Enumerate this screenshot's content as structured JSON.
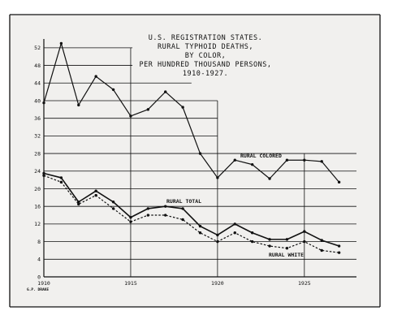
{
  "chart_data": {
    "type": "line",
    "title_lines": [
      "U.S. REGISTRATION STATES.",
      "RURAL TYPHOID DEATHS,",
      "BY COLOR,",
      "PER HUNDRED THOUSAND PERSONS,",
      "1910-1927."
    ],
    "credit": "G.P. DRAKE",
    "x_tick_labels": [
      "1910",
      "1915",
      "1920",
      "1925"
    ],
    "y_tick_labels": [
      "0",
      "4",
      "8",
      "12",
      "16",
      "20",
      "24",
      "28",
      "32",
      "36",
      "40",
      "44",
      "48",
      "52"
    ],
    "xlim": [
      1910,
      1928
    ],
    "ylim": [
      0,
      54
    ],
    "x": [
      1910,
      1911,
      1912,
      1913,
      1914,
      1915,
      1916,
      1917,
      1918,
      1919,
      1920,
      1921,
      1922,
      1923,
      1924,
      1925,
      1926,
      1927
    ],
    "series": [
      {
        "name": "RURAL COLORED",
        "style": "solid",
        "values": [
          39.5,
          53,
          39,
          45.5,
          42.5,
          36.5,
          38,
          42,
          38.5,
          28,
          22.5,
          26.5,
          25.5,
          22.3,
          26.5,
          26.5,
          26.2,
          21.5
        ]
      },
      {
        "name": "RURAL TOTAL",
        "style": "solid",
        "values": [
          23.5,
          22.5,
          17,
          19.5,
          17,
          13.5,
          15.5,
          16,
          15.5,
          11.5,
          9.5,
          12,
          10,
          8.5,
          8.5,
          10.3,
          8.3,
          7
        ]
      },
      {
        "name": "RURAL WHITE",
        "style": "dashed",
        "values": [
          23,
          21.5,
          16.5,
          18.5,
          15.5,
          12.5,
          14,
          14,
          13,
          10,
          8,
          10,
          8,
          7,
          6.5,
          8,
          6,
          5.5
        ]
      }
    ],
    "colors": {
      "ink": "#111111",
      "paper": "#f1f0ee"
    }
  }
}
